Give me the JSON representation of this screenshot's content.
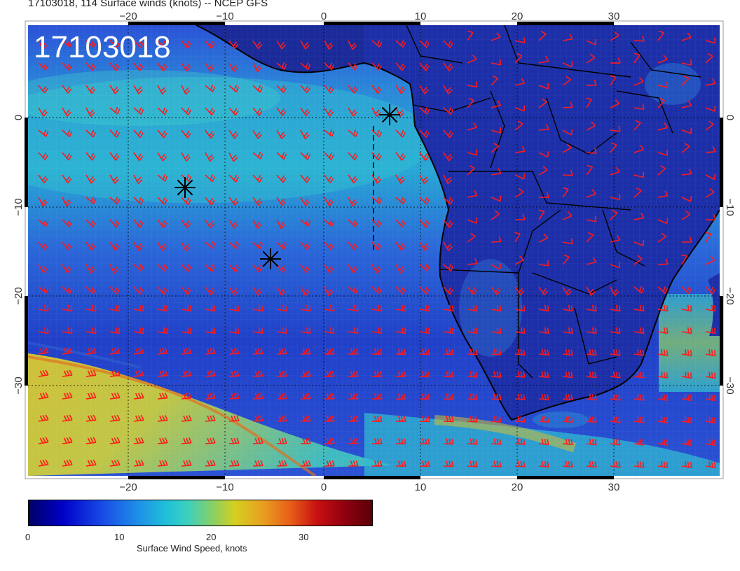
{
  "header": {
    "title": "17103018, 114 Surface winds (knots) -- NCEP GFS"
  },
  "timestamp_overlay": "17103018",
  "axes": {
    "x_ticks": [
      "−20",
      "−10",
      "0",
      "10",
      "20",
      "30"
    ],
    "y_ticks_left": [
      "0",
      "−10",
      "−20",
      "−30"
    ],
    "y_ticks_right": [
      "0",
      "−10",
      "−20",
      "−30"
    ]
  },
  "colorbar": {
    "label": "Surface Wind Speed, knots",
    "ticks": [
      "0",
      "10",
      "20",
      "30"
    ]
  },
  "colors": {
    "wind_barb": "#ff1a1a",
    "coastline": "#000000",
    "ocean_low": "#1a3fd8",
    "ocean_mid": "#25b8d8",
    "high_wind": "#d8c020"
  },
  "markers": [
    {
      "name": "storm-marker-1",
      "symbol": "asterisk"
    },
    {
      "name": "storm-marker-2",
      "symbol": "asterisk"
    },
    {
      "name": "storm-marker-3",
      "symbol": "asterisk"
    }
  ]
}
